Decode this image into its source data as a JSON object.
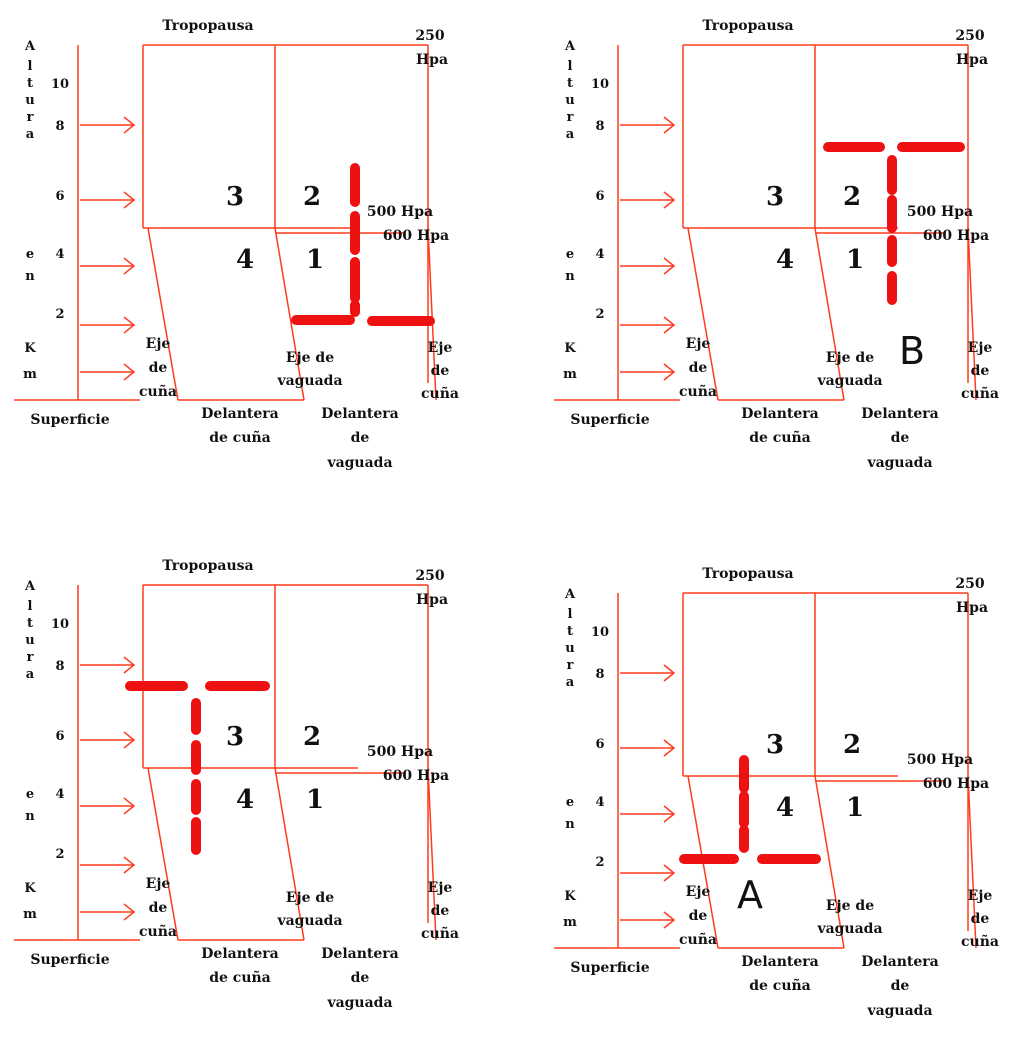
{
  "colors": {
    "frame": "#ff3b1f",
    "dashes": "#ee1111",
    "label_B": "#ee1111",
    "label_A": "#1a28e6",
    "text": "#111111"
  },
  "labels": {
    "tropopausa": "Tropopausa",
    "p250": "250",
    "hpa": "Hpa",
    "p500": "500 Hpa",
    "p600": "600 Hpa",
    "superficie": "Superficie",
    "vertical_axis": [
      "A",
      "l",
      "t",
      "u",
      "r",
      "a",
      "e",
      "n",
      "K",
      "m"
    ],
    "altitudes": [
      "10",
      "8",
      "6",
      "4",
      "2"
    ],
    "eje_cuna": [
      "Eje",
      "de",
      "cuña"
    ],
    "eje_vaguada": [
      "Eje de",
      "vaguada"
    ],
    "delantera_cuna": [
      "Delantera",
      "de cuña"
    ],
    "delantera_vaguada": [
      "Delantera",
      "de",
      "vaguada"
    ],
    "quadrants": [
      "3",
      "2",
      "4",
      "1"
    ]
  },
  "panels": [
    {
      "id": "top-left",
      "marker": "inverted-T",
      "quadrant": "1",
      "letter": ""
    },
    {
      "id": "top-right",
      "marker": "T",
      "quadrant": "2",
      "letter": "B"
    },
    {
      "id": "bottom-left",
      "marker": "T",
      "quadrant": "3-4",
      "letter": ""
    },
    {
      "id": "bottom-right",
      "marker": "inverted-T",
      "quadrant": "4",
      "letter": "A"
    }
  ]
}
